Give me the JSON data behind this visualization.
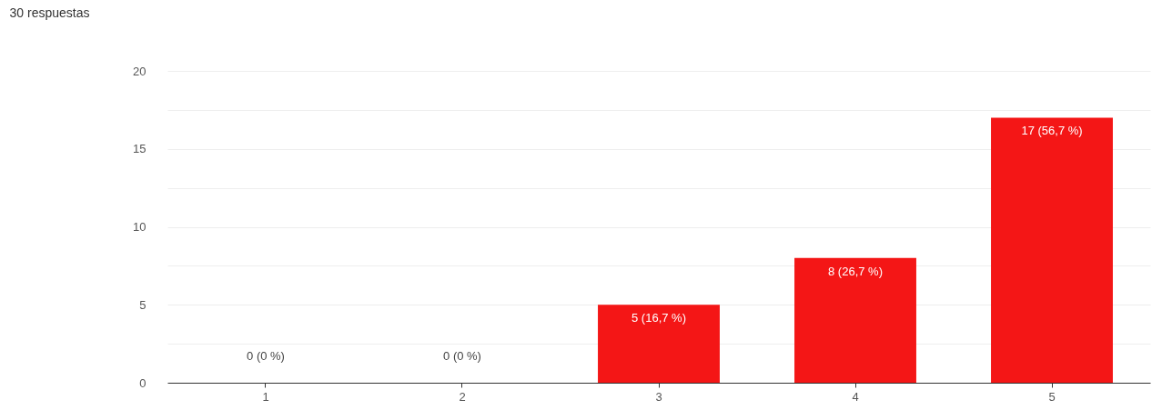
{
  "chart_data": {
    "type": "bar",
    "title": "30 respuestas",
    "categories": [
      "1",
      "2",
      "3",
      "4",
      "5"
    ],
    "values": [
      0,
      0,
      5,
      8,
      17
    ],
    "value_labels": [
      "0 (0 %)",
      "0 (0 %)",
      "5 (16,7 %)",
      "8 (26,7 %)",
      "17 (56,7 %)"
    ],
    "color": "#f41616",
    "ylim": [
      0,
      20
    ],
    "yticks": [
      0,
      {
        "value": 2.5,
        "label": null
      },
      5,
      {
        "value": 7.5,
        "label": null
      },
      10,
      {
        "value": 12.5,
        "label": null
      },
      15,
      {
        "value": 17.5,
        "label": null
      },
      20
    ],
    "grid": "y"
  }
}
